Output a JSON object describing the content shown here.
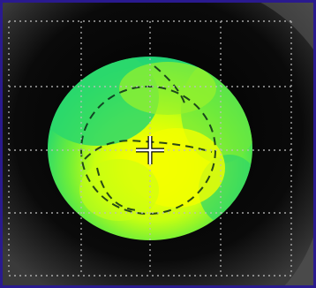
{
  "colors": {
    "frame": "#2a1a8f",
    "background": "#000000",
    "grid": "#bfbfbf",
    "map_green": "#23d96a",
    "map_yellow": "#f5ff00",
    "map_lime": "#b6ff1c",
    "crosshair": "#ffffff",
    "contour": "#0b2a18"
  },
  "icons": {
    "crosshair": "crosshair-icon"
  }
}
